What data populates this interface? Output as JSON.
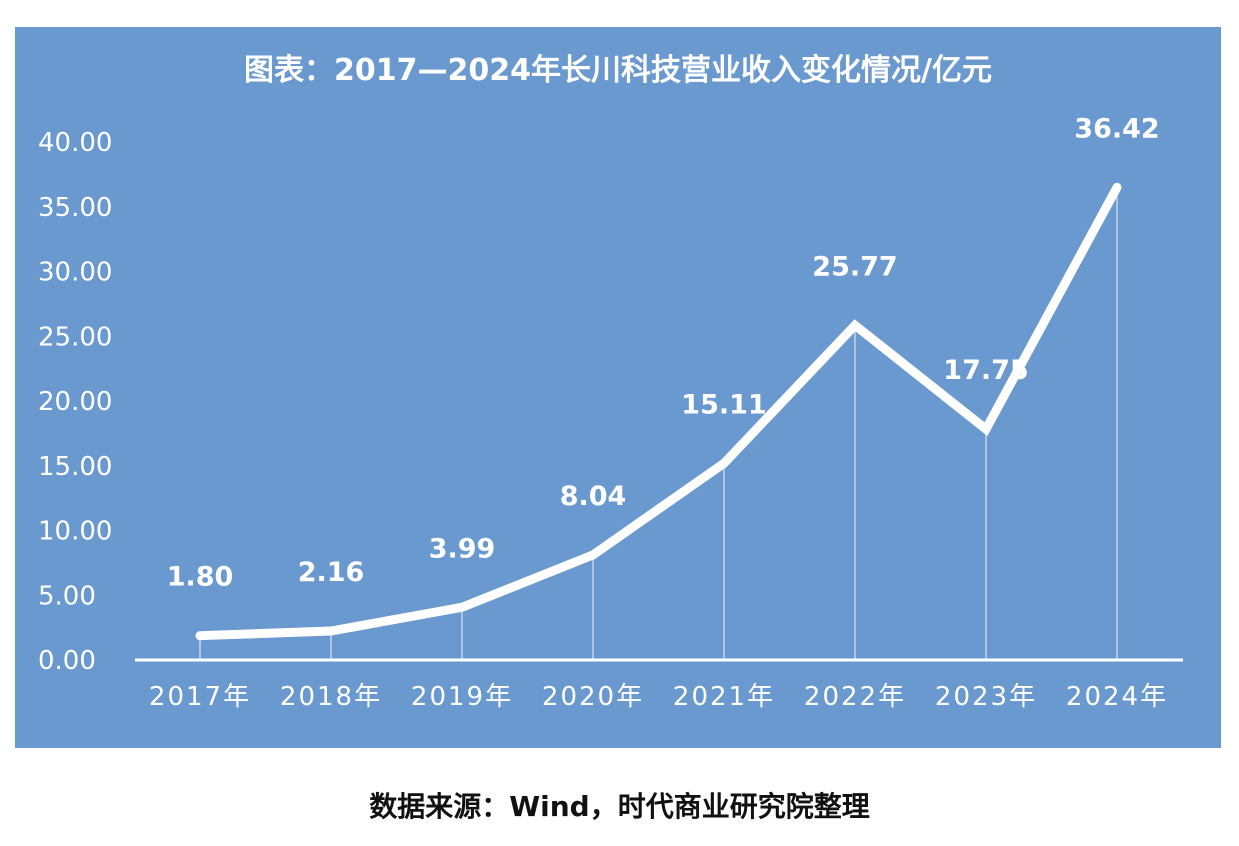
{
  "chart_data": {
    "type": "line",
    "title": "图表：2017—2024年长川科技营业收入变化情况/亿元",
    "categories": [
      "2017年",
      "2018年",
      "2019年",
      "2020年",
      "2021年",
      "2022年",
      "2023年",
      "2024年"
    ],
    "values": [
      1.8,
      2.16,
      3.99,
      8.04,
      15.11,
      25.77,
      17.75,
      36.42
    ],
    "value_labels": [
      "1.80",
      "2.16",
      "3.99",
      "8.04",
      "15.11",
      "25.77",
      "17.75",
      "36.42"
    ],
    "yticks": [
      "0.00",
      "5.00",
      "10.00",
      "15.00",
      "20.00",
      "25.00",
      "30.00",
      "35.00",
      "40.00"
    ],
    "ylim": [
      0,
      40
    ],
    "xlabel": "",
    "ylabel": "",
    "grid": false,
    "colors": {
      "background": "#6a99cf",
      "line": "#ffffff",
      "text": "#ffffff"
    }
  },
  "source": "数据来源：Wind，时代商业研究院整理"
}
